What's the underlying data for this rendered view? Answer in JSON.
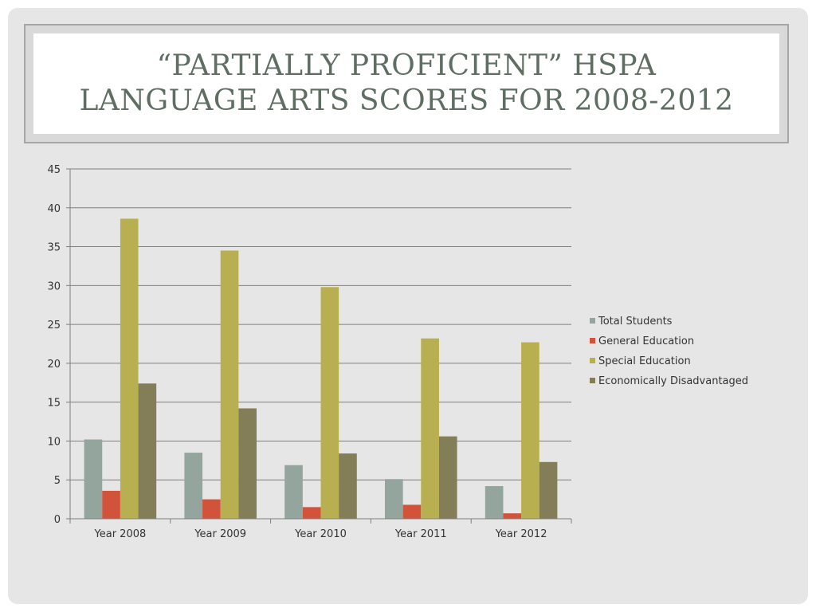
{
  "slide": {
    "title": "“PARTIALLY PROFICIENT” HSPA\nLANGUAGE ARTS SCORES FOR 2008-2012"
  },
  "chart_data": {
    "type": "bar",
    "categories": [
      "Year 2008",
      "Year 2009",
      "Year 2010",
      "Year 2011",
      "Year 2012"
    ],
    "series": [
      {
        "name": "Total Students",
        "color": "#93a59c",
        "values": [
          10.2,
          8.5,
          6.9,
          5.1,
          4.2
        ]
      },
      {
        "name": "General Education",
        "color": "#d2533a",
        "values": [
          3.6,
          2.5,
          1.5,
          1.8,
          0.7
        ]
      },
      {
        "name": "Special Education",
        "color": "#b8b050",
        "values": [
          38.6,
          34.5,
          29.8,
          23.2,
          22.7
        ]
      },
      {
        "name": "Economically Disadvantaged",
        "color": "#847e58",
        "values": [
          17.4,
          14.2,
          8.4,
          10.6,
          7.3
        ]
      }
    ],
    "yticks": [
      "0",
      "5",
      "10",
      "15",
      "20",
      "25",
      "30",
      "35",
      "40",
      "45"
    ],
    "ylim": [
      0,
      45
    ],
    "grid": true,
    "legend_position": "right"
  }
}
